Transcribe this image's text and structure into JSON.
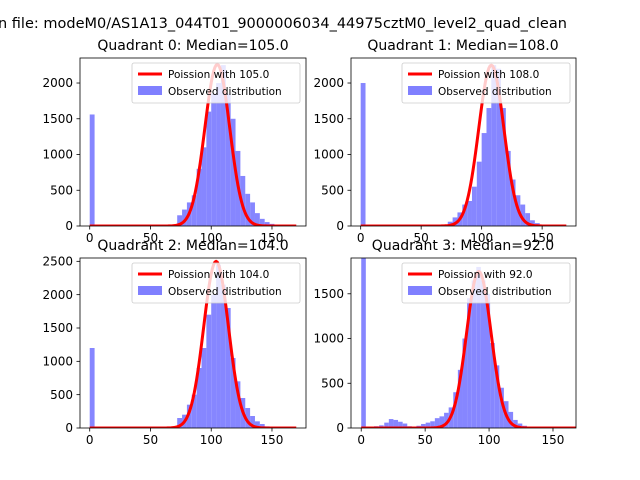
{
  "figure": {
    "suptitle": "n file: modeM0/AS1A13_044T01_9000006034_44975cztM0_level2_quad_clean"
  },
  "colors": {
    "bar": "#8080ff",
    "line": "#ff0000",
    "axes": "#000000"
  },
  "chart_data": [
    {
      "type": "bar",
      "title": "Quadrant 0: Median=105.0",
      "xlim": [
        -8,
        178
      ],
      "ylim": [
        0,
        2350
      ],
      "xticks": [
        0,
        50,
        100,
        150
      ],
      "yticks": [
        0,
        500,
        1000,
        1500,
        2000
      ],
      "bin_width": 4,
      "bins": [
        [
          0,
          1560
        ],
        [
          4,
          0
        ],
        [
          40,
          5
        ],
        [
          68,
          8
        ],
        [
          72,
          150
        ],
        [
          76,
          230
        ],
        [
          80,
          330
        ],
        [
          84,
          430
        ],
        [
          88,
          800
        ],
        [
          92,
          1100
        ],
        [
          96,
          1600
        ],
        [
          100,
          1850
        ],
        [
          104,
          2000
        ],
        [
          108,
          2250
        ],
        [
          112,
          1850
        ],
        [
          116,
          1500
        ],
        [
          120,
          1050
        ],
        [
          124,
          700
        ],
        [
          128,
          450
        ],
        [
          132,
          330
        ],
        [
          136,
          180
        ],
        [
          140,
          100
        ],
        [
          144,
          55
        ],
        [
          148,
          30
        ],
        [
          152,
          12
        ]
      ],
      "poisson_mean": 105.0,
      "poisson_peak": 2260,
      "legend": {
        "line": "Poission with 105.0",
        "bars": "Observed distribution",
        "position": "upper right"
      }
    },
    {
      "type": "bar",
      "title": "Quadrant 1: Median=108.0",
      "xlim": [
        -8,
        178
      ],
      "ylim": [
        0,
        2350
      ],
      "xticks": [
        0,
        50,
        100,
        150
      ],
      "yticks": [
        0,
        500,
        1000,
        1500,
        2000
      ],
      "bin_width": 4,
      "bins": [
        [
          0,
          2000
        ],
        [
          4,
          0
        ],
        [
          24,
          8
        ],
        [
          36,
          10
        ],
        [
          60,
          12
        ],
        [
          72,
          60
        ],
        [
          76,
          120
        ],
        [
          80,
          190
        ],
        [
          84,
          300
        ],
        [
          88,
          350
        ],
        [
          92,
          550
        ],
        [
          96,
          900
        ],
        [
          100,
          1300
        ],
        [
          104,
          1650
        ],
        [
          108,
          2250
        ],
        [
          112,
          2200
        ],
        [
          116,
          1650
        ],
        [
          120,
          1050
        ],
        [
          124,
          650
        ],
        [
          128,
          430
        ],
        [
          132,
          300
        ],
        [
          136,
          180
        ],
        [
          140,
          80
        ],
        [
          144,
          40
        ],
        [
          148,
          15
        ],
        [
          152,
          5
        ]
      ],
      "poisson_mean": 108.0,
      "poisson_peak": 2250,
      "legend": {
        "line": "Poission with 108.0",
        "bars": "Observed distribution",
        "position": "upper right"
      }
    },
    {
      "type": "bar",
      "title": "Quadrant 2: Median=104.0",
      "xlim": [
        -8,
        178
      ],
      "ylim": [
        0,
        2550
      ],
      "xticks": [
        0,
        50,
        100,
        150
      ],
      "yticks": [
        0,
        500,
        1000,
        1500,
        2000,
        2500
      ],
      "bin_width": 4,
      "bins": [
        [
          0,
          1200
        ],
        [
          4,
          0
        ],
        [
          68,
          10
        ],
        [
          72,
          150
        ],
        [
          76,
          200
        ],
        [
          80,
          350
        ],
        [
          84,
          500
        ],
        [
          88,
          900
        ],
        [
          92,
          1200
        ],
        [
          96,
          1700
        ],
        [
          100,
          2000
        ],
        [
          104,
          2450
        ],
        [
          108,
          2150
        ],
        [
          112,
          1800
        ],
        [
          116,
          1050
        ],
        [
          120,
          700
        ],
        [
          124,
          450
        ],
        [
          128,
          300
        ],
        [
          132,
          180
        ],
        [
          136,
          100
        ],
        [
          140,
          60
        ],
        [
          144,
          25
        ],
        [
          148,
          10
        ]
      ],
      "poisson_mean": 104.0,
      "poisson_peak": 2500,
      "legend": {
        "line": "Poission with 104.0",
        "bars": "Observed distribution",
        "position": "upper right"
      }
    },
    {
      "type": "bar",
      "title": "Quadrant 3: Median=92.0",
      "xlim": [
        -8,
        168
      ],
      "ylim": [
        0,
        1900
      ],
      "xticks": [
        0,
        50,
        100,
        150
      ],
      "yticks": [
        0,
        500,
        1000,
        1500
      ],
      "bin_width": 3.6,
      "bins": [
        [
          0,
          1900
        ],
        [
          3.6,
          0
        ],
        [
          10,
          20
        ],
        [
          14,
          30
        ],
        [
          18,
          60
        ],
        [
          21.6,
          100
        ],
        [
          25.2,
          90
        ],
        [
          28.8,
          70
        ],
        [
          32.4,
          50
        ],
        [
          36,
          20
        ],
        [
          39.6,
          15
        ],
        [
          43.2,
          25
        ],
        [
          46.8,
          45
        ],
        [
          50.4,
          60
        ],
        [
          54,
          75
        ],
        [
          57.6,
          110
        ],
        [
          61.2,
          130
        ],
        [
          64.8,
          170
        ],
        [
          68.4,
          230
        ],
        [
          72,
          400
        ],
        [
          75.6,
          650
        ],
        [
          79.2,
          1000
        ],
        [
          82.8,
          1450
        ],
        [
          86.4,
          1650
        ],
        [
          90,
          1800
        ],
        [
          93.6,
          1650
        ],
        [
          97.2,
          1500
        ],
        [
          100.8,
          950
        ],
        [
          104.4,
          700
        ],
        [
          108,
          450
        ],
        [
          111.6,
          300
        ],
        [
          115.2,
          180
        ],
        [
          118.8,
          90
        ],
        [
          122.4,
          50
        ],
        [
          126,
          25
        ],
        [
          129.6,
          10
        ]
      ],
      "poisson_mean": 92.0,
      "poisson_peak": 1750,
      "legend": {
        "line": "Poission with 92.0",
        "bars": "Observed distribution",
        "position": "upper right"
      }
    }
  ]
}
